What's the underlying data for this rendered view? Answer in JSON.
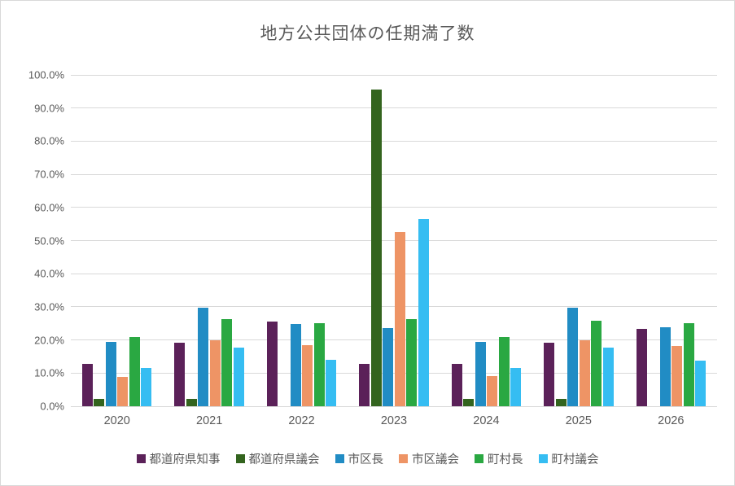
{
  "title": "地方公共団体の任期満了数",
  "colors": {
    "background": "#ffffff",
    "gridline": "#d9d9d9",
    "text": "#595959"
  },
  "chart_data": {
    "type": "bar",
    "title": "地方公共団体の任期満了数",
    "categories": [
      "2020",
      "2021",
      "2022",
      "2023",
      "2024",
      "2025",
      "2026"
    ],
    "series": [
      {
        "name": "都道府県知事",
        "color": "#5b2159",
        "values": [
          12.8,
          19.1,
          25.5,
          12.8,
          12.8,
          19.1,
          23.4
        ]
      },
      {
        "name": "都道府県議会",
        "color": "#33641e",
        "values": [
          2.1,
          2.1,
          0.0,
          95.7,
          2.1,
          2.1,
          0.0
        ]
      },
      {
        "name": "市区長",
        "color": "#218cc4",
        "values": [
          19.4,
          29.7,
          24.7,
          23.6,
          19.5,
          29.7,
          23.9
        ]
      },
      {
        "name": "市区議会",
        "color": "#ee9465",
        "values": [
          8.9,
          19.9,
          18.4,
          52.5,
          9.0,
          19.8,
          18.2
        ]
      },
      {
        "name": "町村長",
        "color": "#2aa842",
        "values": [
          21.0,
          26.4,
          25.0,
          26.2,
          21.0,
          25.8,
          25.0
        ]
      },
      {
        "name": "町村議会",
        "color": "#35bdf2",
        "values": [
          11.6,
          17.6,
          14.0,
          56.4,
          11.6,
          17.7,
          13.8
        ]
      }
    ],
    "ylim": [
      0,
      100
    ],
    "ytick_step": 10,
    "ytick_labels": [
      "0.0%",
      "10.0%",
      "20.0%",
      "30.0%",
      "40.0%",
      "50.0%",
      "60.0%",
      "70.0%",
      "80.0%",
      "90.0%",
      "100.0%"
    ],
    "grid": "horizontal",
    "legend_position": "bottom"
  }
}
